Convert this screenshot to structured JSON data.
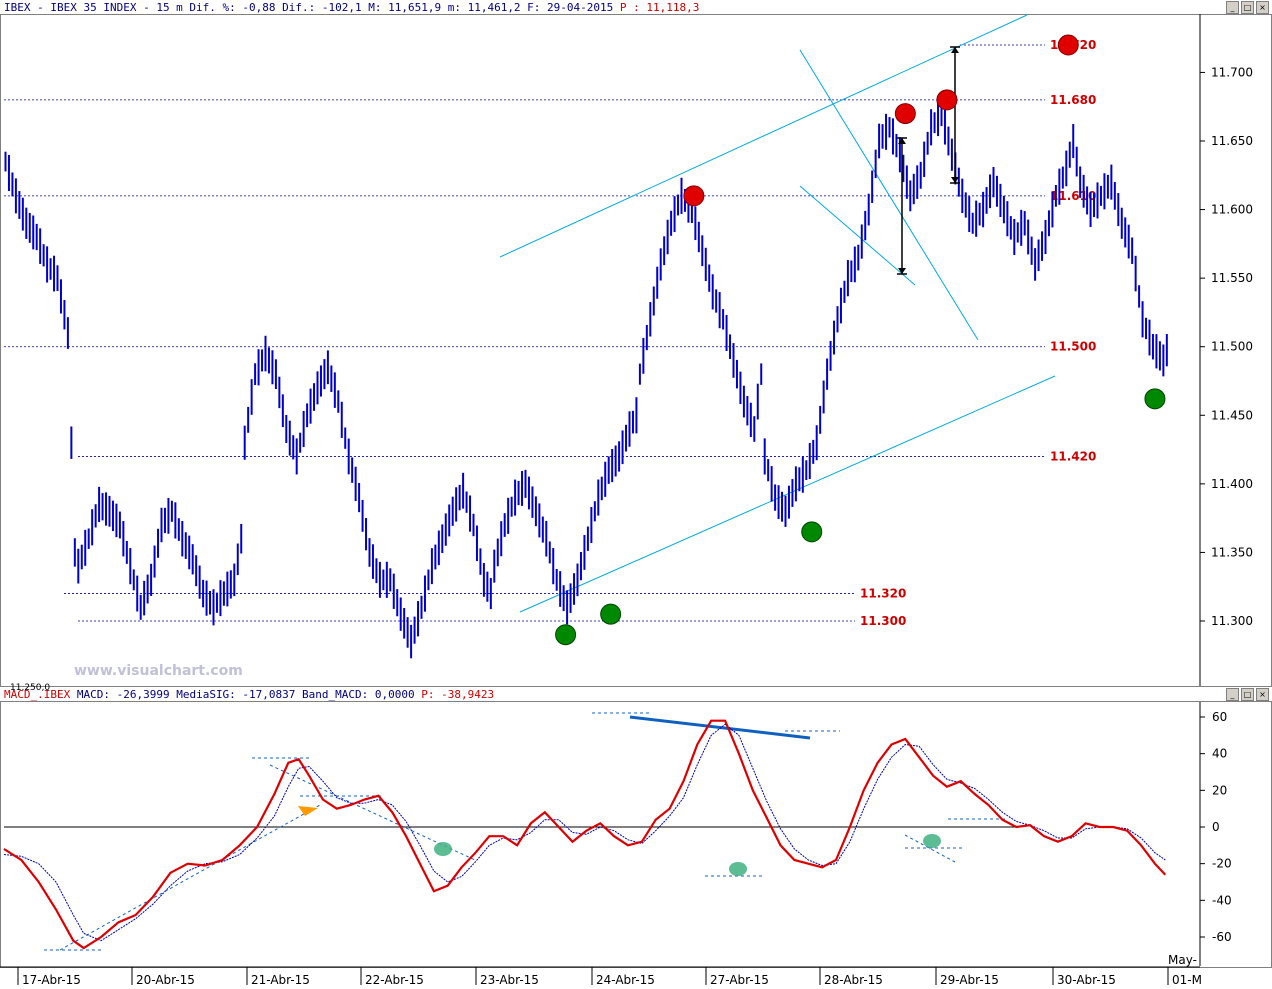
{
  "header": {
    "prefix": "IBEX - IBEX 35 INDEX -  15 m Dif. %: -0,88 Dif.: -102,1 M: 11,651,9 m: 11,461,2 F: 29-04-2015",
    "p_label": "P : 11,118,3"
  },
  "macd_header": {
    "name": "MACD_.IBEX",
    "macd": "MACD: -26,3999",
    "sig": "MediaSIG: -17,0837",
    "band": "Band_MACD: 0,0000",
    "p": "P: -38,9423"
  },
  "watermark": "www.visualchart.com",
  "colors": {
    "price": "#0000cc",
    "trend": "#00aadd",
    "level": "#cc0000",
    "macd": "#dd0000",
    "signal": "#0000aa"
  },
  "chart_data": [
    {
      "type": "bar",
      "ylim": [
        11250,
        11750
      ],
      "y_ticks": [
        "11.700",
        "11.650",
        "11.600",
        "11.550",
        "11.500",
        "11.450",
        "11.400",
        "11.350",
        "11.300"
      ],
      "bottom_label": "11.250,0",
      "levels": [
        {
          "label": "11.720",
          "value": 11720
        },
        {
          "label": "11.680",
          "value": 11680
        },
        {
          "label": "11.610",
          "value": 11610
        },
        {
          "label": "11.500",
          "value": 11500
        },
        {
          "label": "11.420",
          "value": 11420
        },
        {
          "label": "11.320",
          "value": 11320
        },
        {
          "label": "11.300",
          "value": 11300
        }
      ],
      "x_categories": [
        "17-Abr-15",
        "20-Abr-15",
        "21-Abr-15",
        "22-Abr-15",
        "23-Abr-15",
        "24-Abr-15",
        "27-Abr-15",
        "28-Abr-15",
        "29-Abr-15",
        "30-Abr-15",
        "01-M"
      ],
      "extra_label": "May-",
      "price_path": [
        [
          0,
          11635
        ],
        [
          3,
          11610
        ],
        [
          6,
          11590
        ],
        [
          9,
          11580
        ],
        [
          12,
          11560
        ],
        [
          15,
          11550
        ],
        [
          18,
          11510
        ],
        [
          20,
          11350
        ],
        [
          21,
          11340
        ],
        [
          24,
          11360
        ],
        [
          27,
          11385
        ],
        [
          30,
          11380
        ],
        [
          33,
          11370
        ],
        [
          36,
          11340
        ],
        [
          39,
          11310
        ],
        [
          42,
          11330
        ],
        [
          45,
          11370
        ],
        [
          48,
          11380
        ],
        [
          51,
          11360
        ],
        [
          54,
          11345
        ],
        [
          57,
          11320
        ],
        [
          60,
          11310
        ],
        [
          63,
          11320
        ],
        [
          66,
          11330
        ],
        [
          68,
          11360
        ],
        [
          69,
          11430
        ],
        [
          72,
          11480
        ],
        [
          75,
          11495
        ],
        [
          78,
          11480
        ],
        [
          81,
          11440
        ],
        [
          84,
          11420
        ],
        [
          87,
          11450
        ],
        [
          90,
          11470
        ],
        [
          93,
          11485
        ],
        [
          96,
          11460
        ],
        [
          99,
          11420
        ],
        [
          102,
          11390
        ],
        [
          105,
          11350
        ],
        [
          108,
          11330
        ],
        [
          111,
          11330
        ],
        [
          114,
          11305
        ],
        [
          117,
          11285
        ],
        [
          120,
          11310
        ],
        [
          123,
          11340
        ],
        [
          126,
          11360
        ],
        [
          129,
          11380
        ],
        [
          132,
          11395
        ],
        [
          135,
          11370
        ],
        [
          138,
          11330
        ],
        [
          140,
          11320
        ],
        [
          141,
          11340
        ],
        [
          144,
          11370
        ],
        [
          147,
          11390
        ],
        [
          150,
          11400
        ],
        [
          153,
          11380
        ],
        [
          156,
          11360
        ],
        [
          159,
          11330
        ],
        [
          162,
          11310
        ],
        [
          165,
          11330
        ],
        [
          168,
          11360
        ],
        [
          171,
          11390
        ],
        [
          174,
          11410
        ],
        [
          177,
          11420
        ],
        [
          180,
          11440
        ],
        [
          182,
          11450
        ],
        [
          183,
          11480
        ],
        [
          186,
          11520
        ],
        [
          189,
          11560
        ],
        [
          192,
          11590
        ],
        [
          195,
          11610
        ],
        [
          198,
          11600
        ],
        [
          201,
          11570
        ],
        [
          204,
          11540
        ],
        [
          207,
          11520
        ],
        [
          210,
          11490
        ],
        [
          213,
          11460
        ],
        [
          216,
          11440
        ],
        [
          218,
          11480
        ],
        [
          219,
          11420
        ],
        [
          222,
          11390
        ],
        [
          225,
          11380
        ],
        [
          228,
          11400
        ],
        [
          231,
          11410
        ],
        [
          234,
          11430
        ],
        [
          237,
          11480
        ],
        [
          240,
          11520
        ],
        [
          243,
          11550
        ],
        [
          246,
          11565
        ],
        [
          249,
          11600
        ],
        [
          252,
          11650
        ],
        [
          255,
          11660
        ],
        [
          258,
          11640
        ],
        [
          261,
          11610
        ],
        [
          264,
          11625
        ],
        [
          267,
          11660
        ],
        [
          270,
          11670
        ],
        [
          273,
          11640
        ],
        [
          276,
          11610
        ],
        [
          279,
          11590
        ],
        [
          282,
          11600
        ],
        [
          285,
          11620
        ],
        [
          288,
          11600
        ],
        [
          291,
          11580
        ],
        [
          294,
          11590
        ],
        [
          297,
          11560
        ],
        [
          300,
          11580
        ],
        [
          303,
          11610
        ],
        [
          306,
          11630
        ],
        [
          308,
          11650
        ],
        [
          310,
          11620
        ],
        [
          313,
          11600
        ],
        [
          316,
          11610
        ],
        [
          319,
          11620
        ],
        [
          322,
          11590
        ],
        [
          325,
          11570
        ],
        [
          328,
          11520
        ],
        [
          331,
          11500
        ],
        [
          334,
          11490
        ],
        [
          336,
          11505
        ]
      ],
      "markers_red": [
        [
          199,
          11610
        ],
        [
          260,
          11670
        ],
        [
          272,
          11680
        ],
        [
          307,
          11720
        ]
      ],
      "markers_green": [
        [
          162,
          11290
        ],
        [
          175,
          11305
        ],
        [
          233,
          11365
        ],
        [
          332,
          11462
        ]
      ]
    },
    {
      "type": "line",
      "ylim": [
        -70,
        70
      ],
      "y_ticks": [
        "60",
        "40",
        "20",
        "0",
        "-20",
        "-40",
        "-60"
      ],
      "series_macd": [
        [
          0,
          -12
        ],
        [
          5,
          -18
        ],
        [
          10,
          -30
        ],
        [
          15,
          -45
        ],
        [
          20,
          -62
        ],
        [
          23,
          -66
        ],
        [
          28,
          -60
        ],
        [
          33,
          -52
        ],
        [
          38,
          -48
        ],
        [
          43,
          -38
        ],
        [
          48,
          -25
        ],
        [
          53,
          -20
        ],
        [
          58,
          -21
        ],
        [
          63,
          -18
        ],
        [
          68,
          -10
        ],
        [
          73,
          0
        ],
        [
          78,
          18
        ],
        [
          82,
          35
        ],
        [
          85,
          37
        ],
        [
          88,
          28
        ],
        [
          92,
          15
        ],
        [
          96,
          10
        ],
        [
          100,
          12
        ],
        [
          104,
          15
        ],
        [
          108,
          17
        ],
        [
          112,
          8
        ],
        [
          116,
          -5
        ],
        [
          120,
          -20
        ],
        [
          124,
          -35
        ],
        [
          128,
          -32
        ],
        [
          132,
          -22
        ],
        [
          136,
          -14
        ],
        [
          140,
          -5
        ],
        [
          144,
          -5
        ],
        [
          148,
          -10
        ],
        [
          152,
          2
        ],
        [
          156,
          8
        ],
        [
          160,
          0
        ],
        [
          164,
          -8
        ],
        [
          168,
          -2
        ],
        [
          172,
          2
        ],
        [
          176,
          -5
        ],
        [
          180,
          -10
        ],
        [
          184,
          -8
        ],
        [
          188,
          4
        ],
        [
          192,
          10
        ],
        [
          196,
          25
        ],
        [
          200,
          45
        ],
        [
          204,
          58
        ],
        [
          208,
          58
        ],
        [
          212,
          40
        ],
        [
          216,
          20
        ],
        [
          220,
          5
        ],
        [
          224,
          -10
        ],
        [
          228,
          -18
        ],
        [
          232,
          -20
        ],
        [
          236,
          -22
        ],
        [
          240,
          -18
        ],
        [
          244,
          0
        ],
        [
          248,
          20
        ],
        [
          252,
          35
        ],
        [
          256,
          45
        ],
        [
          260,
          48
        ],
        [
          264,
          38
        ],
        [
          268,
          28
        ],
        [
          272,
          22
        ],
        [
          276,
          25
        ],
        [
          280,
          18
        ],
        [
          284,
          12
        ],
        [
          288,
          4
        ],
        [
          292,
          0
        ],
        [
          296,
          1
        ],
        [
          300,
          -5
        ],
        [
          304,
          -8
        ],
        [
          308,
          -5
        ],
        [
          312,
          2
        ],
        [
          316,
          0
        ],
        [
          320,
          0
        ],
        [
          324,
          -2
        ],
        [
          328,
          -10
        ],
        [
          332,
          -20
        ],
        [
          335,
          -26
        ]
      ],
      "series_signal": [
        [
          0,
          -15
        ],
        [
          5,
          -16
        ],
        [
          10,
          -20
        ],
        [
          15,
          -30
        ],
        [
          20,
          -48
        ],
        [
          23,
          -58
        ],
        [
          28,
          -62
        ],
        [
          33,
          -56
        ],
        [
          38,
          -50
        ],
        [
          43,
          -42
        ],
        [
          48,
          -32
        ],
        [
          53,
          -24
        ],
        [
          58,
          -20
        ],
        [
          63,
          -19
        ],
        [
          68,
          -15
        ],
        [
          73,
          -6
        ],
        [
          78,
          6
        ],
        [
          82,
          22
        ],
        [
          85,
          32
        ],
        [
          88,
          33
        ],
        [
          92,
          25
        ],
        [
          96,
          16
        ],
        [
          100,
          13
        ],
        [
          104,
          13
        ],
        [
          108,
          15
        ],
        [
          112,
          12
        ],
        [
          116,
          3
        ],
        [
          120,
          -10
        ],
        [
          124,
          -24
        ],
        [
          128,
          -30
        ],
        [
          132,
          -27
        ],
        [
          136,
          -19
        ],
        [
          140,
          -10
        ],
        [
          144,
          -6
        ],
        [
          148,
          -7
        ],
        [
          152,
          -3
        ],
        [
          156,
          4
        ],
        [
          160,
          4
        ],
        [
          164,
          -3
        ],
        [
          168,
          -4
        ],
        [
          172,
          0
        ],
        [
          176,
          -2
        ],
        [
          180,
          -7
        ],
        [
          184,
          -9
        ],
        [
          188,
          -2
        ],
        [
          192,
          6
        ],
        [
          196,
          16
        ],
        [
          200,
          34
        ],
        [
          204,
          50
        ],
        [
          208,
          56
        ],
        [
          212,
          50
        ],
        [
          216,
          32
        ],
        [
          220,
          14
        ],
        [
          224,
          -1
        ],
        [
          228,
          -12
        ],
        [
          232,
          -18
        ],
        [
          236,
          -21
        ],
        [
          240,
          -20
        ],
        [
          244,
          -8
        ],
        [
          248,
          10
        ],
        [
          252,
          26
        ],
        [
          256,
          38
        ],
        [
          260,
          45
        ],
        [
          264,
          44
        ],
        [
          268,
          34
        ],
        [
          272,
          26
        ],
        [
          276,
          24
        ],
        [
          280,
          21
        ],
        [
          284,
          15
        ],
        [
          288,
          8
        ],
        [
          292,
          3
        ],
        [
          296,
          1
        ],
        [
          300,
          -2
        ],
        [
          304,
          -6
        ],
        [
          308,
          -6
        ],
        [
          312,
          -1
        ],
        [
          316,
          0
        ],
        [
          320,
          0
        ],
        [
          324,
          -1
        ],
        [
          328,
          -6
        ],
        [
          332,
          -14
        ],
        [
          335,
          -18
        ]
      ]
    }
  ]
}
